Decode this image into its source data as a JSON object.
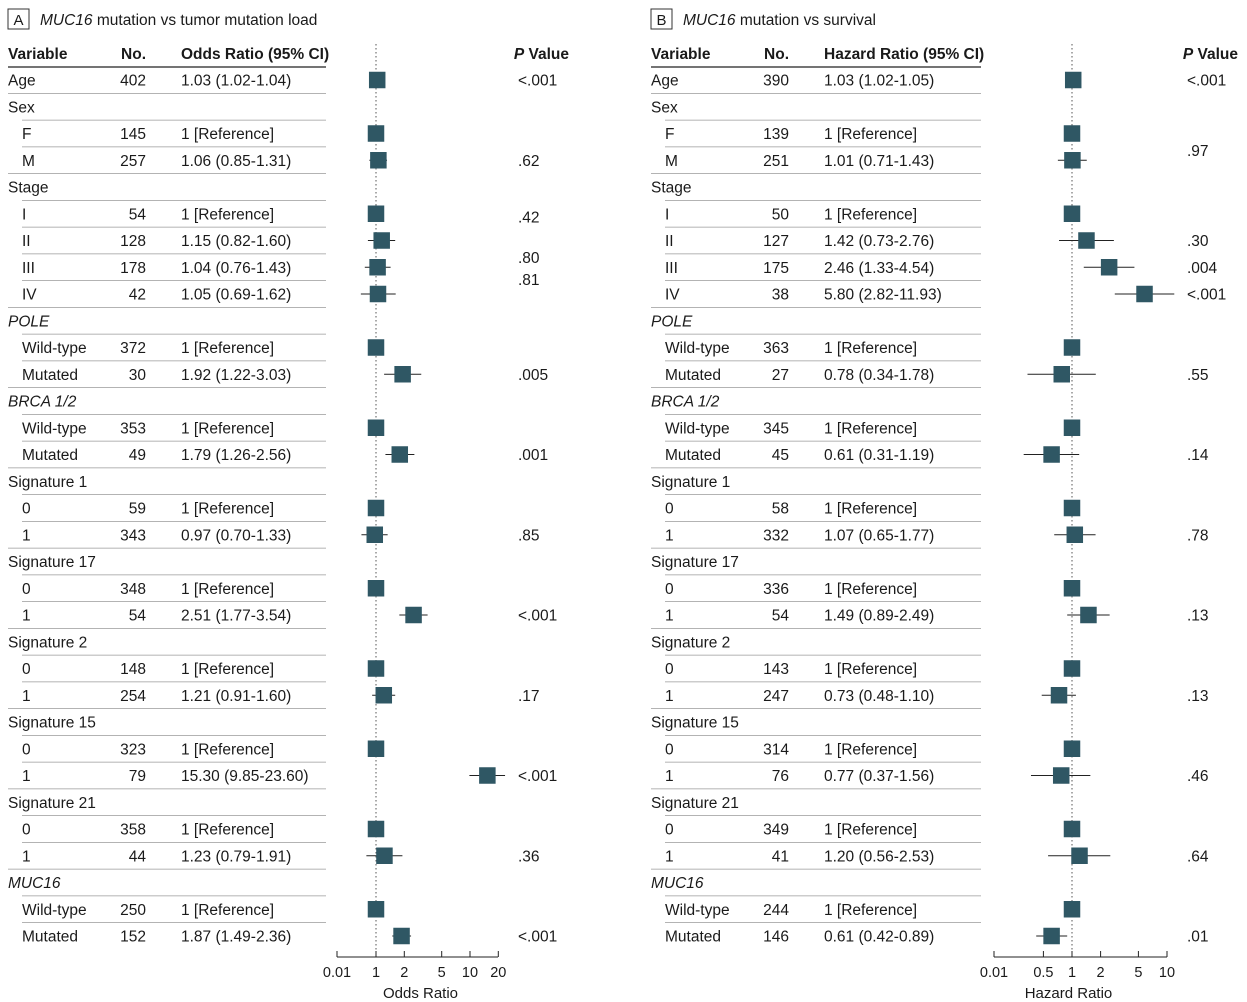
{
  "chart_data": [
    {
      "type": "forest",
      "panel_letter": "A",
      "title_italic": "MUC16",
      "title_rest": " mutation vs tumor mutation load",
      "headers": {
        "variable": "Variable",
        "no": "No.",
        "ratio": "Odds Ratio (95% CI)",
        "p_italic": "P",
        "p_rest": " Value"
      },
      "xlabel": "Odds Ratio",
      "scale": "log",
      "xlim": [
        0.01,
        20
      ],
      "ticks": [
        {
          "v": 0.01,
          "label": "0.01"
        },
        {
          "v": 1,
          "label": "1"
        },
        {
          "v": 2,
          "label": "2"
        },
        {
          "v": 5,
          "label": "5"
        },
        {
          "v": 10,
          "label": "10"
        },
        {
          "v": 20,
          "label": "20"
        }
      ],
      "reference_line": 1,
      "rows": [
        {
          "label": "Age",
          "header": false,
          "n": "402",
          "text": "1.03 (1.02-1.04)",
          "est": 1.03,
          "lo": 1.02,
          "hi": 1.04,
          "p": "<.001"
        },
        {
          "label": "Sex",
          "header": true
        },
        {
          "label": "F",
          "header": false,
          "n": "145",
          "text": "1 [Reference]",
          "est": 1,
          "lo": 1,
          "hi": 1,
          "p": ""
        },
        {
          "label": "M",
          "header": false,
          "n": "257",
          "text": "1.06 (0.85-1.31)",
          "est": 1.06,
          "lo": 0.85,
          "hi": 1.31,
          "p": ".62"
        },
        {
          "label": "Stage",
          "header": true
        },
        {
          "label": "I",
          "header": false,
          "n": "54",
          "text": "1 [Reference]",
          "est": 1,
          "lo": 1,
          "hi": 1,
          "p": ".42"
        },
        {
          "label": "II",
          "header": false,
          "n": "128",
          "text": "1.15 (0.82-1.60)",
          "est": 1.15,
          "lo": 0.82,
          "hi": 1.6,
          "p": ".80"
        },
        {
          "label": "III",
          "header": false,
          "n": "178",
          "text": "1.04 (0.76-1.43)",
          "est": 1.04,
          "lo": 0.76,
          "hi": 1.43,
          "p": ".81"
        },
        {
          "label": "IV",
          "header": false,
          "n": "42",
          "text": "1.05 (0.69-1.62)",
          "est": 1.05,
          "lo": 0.69,
          "hi": 1.62,
          "p": ""
        },
        {
          "label": "POLE",
          "header": true,
          "italic": true
        },
        {
          "label": "Wild-type",
          "header": false,
          "n": "372",
          "text": "1 [Reference]",
          "est": 1,
          "lo": 1,
          "hi": 1,
          "p": ""
        },
        {
          "label": "Mutated",
          "header": false,
          "n": "30",
          "text": "1.92 (1.22-3.03)",
          "est": 1.92,
          "lo": 1.22,
          "hi": 3.03,
          "p": ".005"
        },
        {
          "label": "BRCA 1/2",
          "header": true,
          "italic": true
        },
        {
          "label": "Wild-type",
          "header": false,
          "n": "353",
          "text": "1 [Reference]",
          "est": 1,
          "lo": 1,
          "hi": 1,
          "p": ""
        },
        {
          "label": "Mutated",
          "header": false,
          "n": "49",
          "text": "1.79 (1.26-2.56)",
          "est": 1.79,
          "lo": 1.26,
          "hi": 2.56,
          "p": ".001"
        },
        {
          "label": "Signature 1",
          "header": true
        },
        {
          "label": "0",
          "header": false,
          "n": "59",
          "text": "1 [Reference]",
          "est": 1,
          "lo": 1,
          "hi": 1,
          "p": ""
        },
        {
          "label": "1",
          "header": false,
          "n": "343",
          "text": "0.97 (0.70-1.33)",
          "est": 0.97,
          "lo": 0.7,
          "hi": 1.33,
          "p": ".85"
        },
        {
          "label": "Signature 17",
          "header": true
        },
        {
          "label": "0",
          "header": false,
          "n": "348",
          "text": "1 [Reference]",
          "est": 1,
          "lo": 1,
          "hi": 1,
          "p": ""
        },
        {
          "label": "1",
          "header": false,
          "n": "54",
          "text": "2.51 (1.77-3.54)",
          "est": 2.51,
          "lo": 1.77,
          "hi": 3.54,
          "p": "<.001"
        },
        {
          "label": "Signature 2",
          "header": true
        },
        {
          "label": "0",
          "header": false,
          "n": "148",
          "text": "1 [Reference]",
          "est": 1,
          "lo": 1,
          "hi": 1,
          "p": ""
        },
        {
          "label": "1",
          "header": false,
          "n": "254",
          "text": "1.21 (0.91-1.60)",
          "est": 1.21,
          "lo": 0.91,
          "hi": 1.6,
          "p": ".17"
        },
        {
          "label": "Signature 15",
          "header": true
        },
        {
          "label": "0",
          "header": false,
          "n": "323",
          "text": "1 [Reference]",
          "est": 1,
          "lo": 1,
          "hi": 1,
          "p": ""
        },
        {
          "label": "1",
          "header": false,
          "n": "79",
          "text": "15.30 (9.85-23.60)",
          "est": 15.3,
          "lo": 9.85,
          "hi": 23.6,
          "p": "<.001"
        },
        {
          "label": "Signature 21",
          "header": true
        },
        {
          "label": "0",
          "header": false,
          "n": "358",
          "text": "1 [Reference]",
          "est": 1,
          "lo": 1,
          "hi": 1,
          "p": ""
        },
        {
          "label": "1",
          "header": false,
          "n": "44",
          "text": "1.23 (0.79-1.91)",
          "est": 1.23,
          "lo": 0.79,
          "hi": 1.91,
          "p": ".36"
        },
        {
          "label": "MUC16",
          "header": true,
          "italic": true
        },
        {
          "label": "Wild-type",
          "header": false,
          "n": "250",
          "text": "1 [Reference]",
          "est": 1,
          "lo": 1,
          "hi": 1,
          "p": ""
        },
        {
          "label": "Mutated",
          "header": false,
          "n": "152",
          "text": "1.87 (1.49-2.36)",
          "est": 1.87,
          "lo": 1.49,
          "hi": 2.36,
          "p": "<.001"
        }
      ]
    },
    {
      "type": "forest",
      "panel_letter": "B",
      "title_italic": "MUC16",
      "title_rest": " mutation vs survival",
      "headers": {
        "variable": "Variable",
        "no": "No.",
        "ratio": "Hazard Ratio (95% CI)",
        "p_italic": "P",
        "p_rest": " Value"
      },
      "xlabel": "Hazard Ratio",
      "scale": "log",
      "xlim": [
        0.01,
        10
      ],
      "ticks": [
        {
          "v": 0.01,
          "label": "0.01"
        },
        {
          "v": 0.5,
          "label": "0.5"
        },
        {
          "v": 1,
          "label": "1"
        },
        {
          "v": 2,
          "label": "2"
        },
        {
          "v": 5,
          "label": "5"
        },
        {
          "v": 10,
          "label": "10"
        }
      ],
      "reference_line": 1,
      "rows": [
        {
          "label": "Age",
          "header": false,
          "n": "390",
          "text": "1.03 (1.02-1.05)",
          "est": 1.03,
          "lo": 1.02,
          "hi": 1.05,
          "p": "<.001"
        },
        {
          "label": "Sex",
          "header": true
        },
        {
          "label": "F",
          "header": false,
          "n": "139",
          "text": "1 [Reference]",
          "est": 1,
          "lo": 1,
          "hi": 1,
          "p": ""
        },
        {
          "label": "M",
          "header": false,
          "n": "251",
          "text": "1.01 (0.71-1.43)",
          "est": 1.01,
          "lo": 0.71,
          "hi": 1.43,
          "p": ".97"
        },
        {
          "label": "Stage",
          "header": true
        },
        {
          "label": "I",
          "header": false,
          "n": "50",
          "text": "1 [Reference]",
          "est": 1,
          "lo": 1,
          "hi": 1,
          "p": ""
        },
        {
          "label": "II",
          "header": false,
          "n": "127",
          "text": "1.42 (0.73-2.76)",
          "est": 1.42,
          "lo": 0.73,
          "hi": 2.76,
          "p": ".30"
        },
        {
          "label": "III",
          "header": false,
          "n": "175",
          "text": "2.46 (1.33-4.54)",
          "est": 2.46,
          "lo": 1.33,
          "hi": 4.54,
          "p": ".004"
        },
        {
          "label": "IV",
          "header": false,
          "n": "38",
          "text": "5.80 (2.82-11.93)",
          "est": 5.8,
          "lo": 2.82,
          "hi": 11.93,
          "p": "<.001"
        },
        {
          "label": "POLE",
          "header": true,
          "italic": true
        },
        {
          "label": "Wild-type",
          "header": false,
          "n": "363",
          "text": "1 [Reference]",
          "est": 1,
          "lo": 1,
          "hi": 1,
          "p": ""
        },
        {
          "label": "Mutated",
          "header": false,
          "n": "27",
          "text": "0.78 (0.34-1.78)",
          "est": 0.78,
          "lo": 0.34,
          "hi": 1.78,
          "p": ".55"
        },
        {
          "label": "BRCA 1/2",
          "header": true,
          "italic": true
        },
        {
          "label": "Wild-type",
          "header": false,
          "n": "345",
          "text": "1 [Reference]",
          "est": 1,
          "lo": 1,
          "hi": 1,
          "p": ""
        },
        {
          "label": "Mutated",
          "header": false,
          "n": "45",
          "text": "0.61 (0.31-1.19)",
          "est": 0.61,
          "lo": 0.31,
          "hi": 1.19,
          "p": ".14"
        },
        {
          "label": "Signature 1",
          "header": true
        },
        {
          "label": "0",
          "header": false,
          "n": "58",
          "text": "1 [Reference]",
          "est": 1,
          "lo": 1,
          "hi": 1,
          "p": ""
        },
        {
          "label": "1",
          "header": false,
          "n": "332",
          "text": "1.07 (0.65-1.77)",
          "est": 1.07,
          "lo": 0.65,
          "hi": 1.77,
          "p": ".78"
        },
        {
          "label": "Signature 17",
          "header": true
        },
        {
          "label": "0",
          "header": false,
          "n": "336",
          "text": "1 [Reference]",
          "est": 1,
          "lo": 1,
          "hi": 1,
          "p": ""
        },
        {
          "label": "1",
          "header": false,
          "n": "54",
          "text": "1.49 (0.89-2.49)",
          "est": 1.49,
          "lo": 0.89,
          "hi": 2.49,
          "p": ".13"
        },
        {
          "label": "Signature 2",
          "header": true
        },
        {
          "label": "0",
          "header": false,
          "n": "143",
          "text": "1 [Reference]",
          "est": 1,
          "lo": 1,
          "hi": 1,
          "p": ""
        },
        {
          "label": "1",
          "header": false,
          "n": "247",
          "text": "0.73 (0.48-1.10)",
          "est": 0.73,
          "lo": 0.48,
          "hi": 1.1,
          "p": ".13"
        },
        {
          "label": "Signature 15",
          "header": true
        },
        {
          "label": "0",
          "header": false,
          "n": "314",
          "text": "1 [Reference]",
          "est": 1,
          "lo": 1,
          "hi": 1,
          "p": ""
        },
        {
          "label": "1",
          "header": false,
          "n": "76",
          "text": "0.77 (0.37-1.56)",
          "est": 0.77,
          "lo": 0.37,
          "hi": 1.56,
          "p": ".46"
        },
        {
          "label": "Signature 21",
          "header": true
        },
        {
          "label": "0",
          "header": false,
          "n": "349",
          "text": "1 [Reference]",
          "est": 1,
          "lo": 1,
          "hi": 1,
          "p": ""
        },
        {
          "label": "1",
          "header": false,
          "n": "41",
          "text": "1.20 (0.56-2.53)",
          "est": 1.2,
          "lo": 0.56,
          "hi": 2.53,
          "p": ".64"
        },
        {
          "label": "MUC16",
          "header": true,
          "italic": true
        },
        {
          "label": "Wild-type",
          "header": false,
          "n": "244",
          "text": "1 [Reference]",
          "est": 1,
          "lo": 1,
          "hi": 1,
          "p": ""
        },
        {
          "label": "Mutated",
          "header": false,
          "n": "146",
          "text": "0.61 (0.42-0.89)",
          "est": 0.61,
          "lo": 0.42,
          "hi": 0.89,
          "p": ".01"
        }
      ]
    }
  ],
  "colors": {
    "marker": "#2f5764",
    "text": "#1a1a1a",
    "rule": "#9a9a9a",
    "axis": "#555555"
  }
}
